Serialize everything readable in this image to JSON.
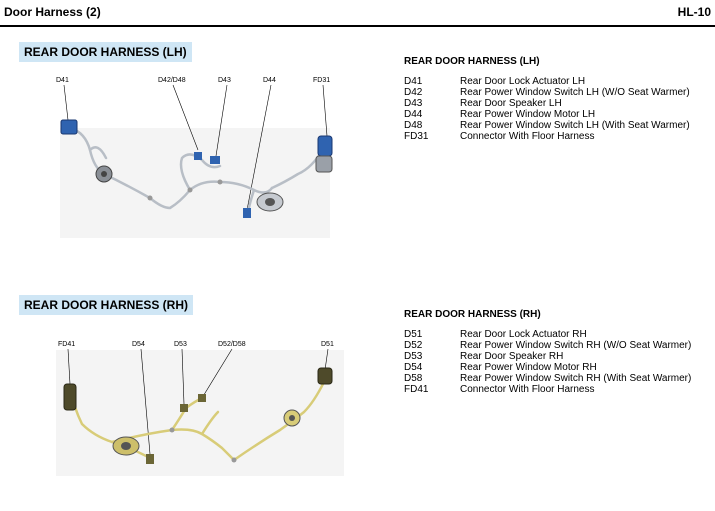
{
  "header": {
    "title": "Door Harness (2)",
    "page_code": "HL-10"
  },
  "lh": {
    "section_label": "REAR DOOR HARNESS (LH)",
    "callouts": [
      "D41",
      "D42/D48",
      "D43",
      "D44",
      "FD31"
    ],
    "legend": {
      "title": "REAR DOOR HARNESS (LH)",
      "items": [
        {
          "code": "D41",
          "desc": "Rear Door Lock Actuator LH"
        },
        {
          "code": "D42",
          "desc": "Rear Power Window Switch LH (W/O Seat Warmer)"
        },
        {
          "code": "D43",
          "desc": "Rear Door Speaker LH"
        },
        {
          "code": "D44",
          "desc": "Rear Power Window Motor LH"
        },
        {
          "code": "D48",
          "desc": "Rear Power Window Switch LH (With Seat Warmer)"
        },
        {
          "code": "FD31",
          "desc": "Connector With Floor Harness"
        }
      ]
    },
    "colors": {
      "wire": "#b8bec6",
      "connector": "#2f63b0"
    }
  },
  "rh": {
    "section_label": "REAR DOOR HARNESS (RH)",
    "callouts": [
      "FD41",
      "D54",
      "D53",
      "D52/D58",
      "D51"
    ],
    "legend": {
      "title": "REAR DOOR HARNESS (RH)",
      "items": [
        {
          "code": "D51",
          "desc": "Rear Door Lock Actuator RH"
        },
        {
          "code": "D52",
          "desc": "Rear Power Window Switch RH (W/O Seat Warmer)"
        },
        {
          "code": "D53",
          "desc": "Rear Door Speaker RH"
        },
        {
          "code": "D54",
          "desc": "Rear Power Window Motor RH"
        },
        {
          "code": "D58",
          "desc": "Rear Power Window Switch RH (With Seat Warmer)"
        },
        {
          "code": "FD41",
          "desc": "Connector With Floor Harness"
        }
      ]
    },
    "colors": {
      "wire": "#d8cc78",
      "connector": "#4e4a2a"
    }
  }
}
